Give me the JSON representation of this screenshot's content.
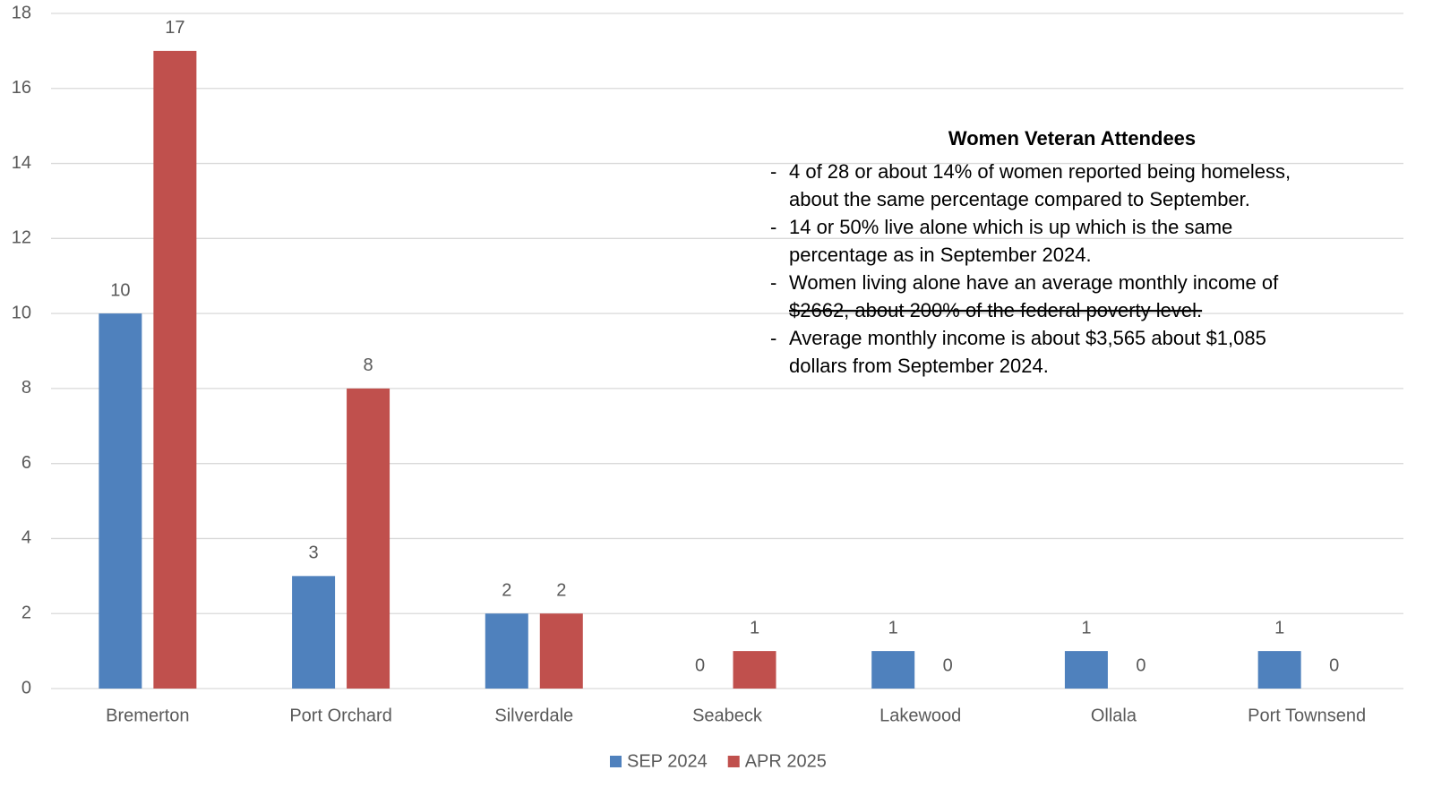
{
  "chart_data": {
    "type": "bar",
    "categories": [
      "Bremerton",
      "Port Orchard",
      "Silverdale",
      "Seabeck",
      "Lakewood",
      "Ollala",
      "Port Townsend"
    ],
    "series": [
      {
        "name": "SEP 2024",
        "color": "#4f81bd",
        "values": [
          10,
          3,
          2,
          0,
          1,
          1,
          1
        ]
      },
      {
        "name": "APR 2025",
        "color": "#c0504d",
        "values": [
          17,
          8,
          2,
          1,
          0,
          0,
          0
        ]
      }
    ],
    "ylim": [
      0,
      18
    ],
    "yticks": [
      0,
      2,
      4,
      6,
      8,
      10,
      12,
      14,
      16,
      18
    ],
    "grid": true,
    "legend": "bottom",
    "annotation": {
      "title": "Women Veteran Attendees",
      "items": [
        [
          "4 of 28 or about 14% of women reported being homeless,",
          "about the same percentage compared to September."
        ],
        [
          "14 or 50% live alone which is up which is the same",
          "percentage as in September 2024."
        ],
        [
          "Women living alone have an average monthly income of",
          "$2662, about 200% of the federal poverty level."
        ],
        [
          "Average monthly income is about $3,565 about $1,085",
          "dollars from September 2024."
        ]
      ]
    }
  }
}
